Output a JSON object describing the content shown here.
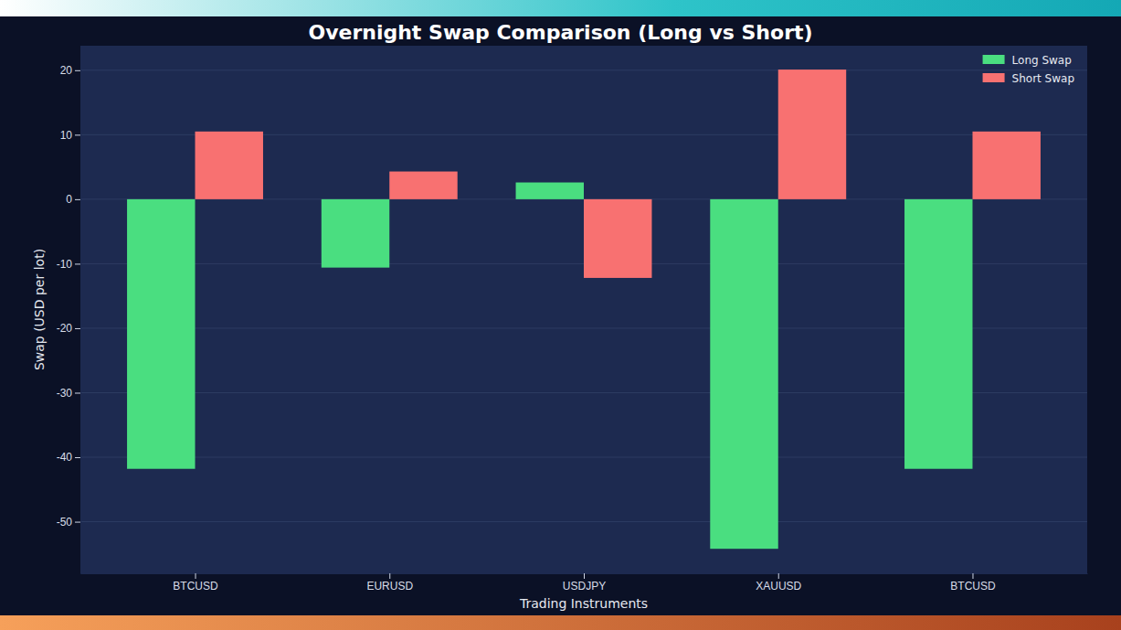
{
  "chart_data": {
    "type": "bar",
    "title": "Overnight Swap Comparison (Long vs Short)",
    "x_label": "Trading Instruments",
    "y_label": "Swap (USD per lot)",
    "categories": [
      "BTCUSD",
      "EURUSD",
      "USDJPY",
      "XAUUSD",
      "BTCUSD"
    ],
    "series": [
      {
        "name": "Long Swap",
        "color": "#4ade80",
        "values": [
          -41.8,
          -10.6,
          2.6,
          -54.2,
          -41.8
        ]
      },
      {
        "name": "Short Swap",
        "color": "#f87171",
        "values": [
          10.5,
          4.3,
          -12.2,
          20.1,
          10.5
        ]
      }
    ],
    "ylim": [
      -58,
      23.8
    ],
    "yticks": [
      -50,
      -40,
      -30,
      -20,
      -10,
      0,
      10,
      20
    ],
    "grid": true,
    "legend": "upper right"
  }
}
